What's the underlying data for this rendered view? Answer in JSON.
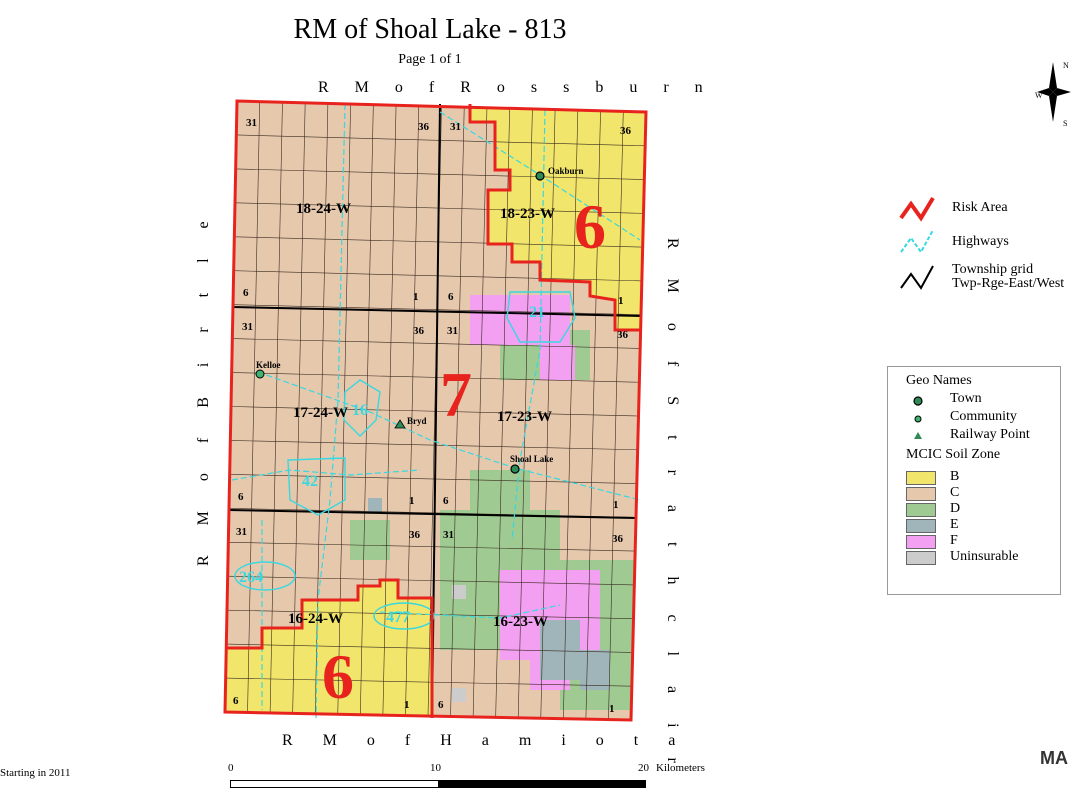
{
  "title": "RM of Shoal Lake - 813",
  "page_label": "Page 1 of 1",
  "borders": {
    "north": "R M   o f   R o s s b u r n",
    "south": "R M   o f   H a m i o t a",
    "west": "R M   o f   B i r t l e",
    "east": "R M   o f   S t r a t h c l a i r"
  },
  "townships": [
    "18-24-W",
    "18-23-W",
    "17-24-W",
    "17-23-W",
    "16-24-W",
    "16-23-W"
  ],
  "risk_areas": [
    "6",
    "7",
    "6"
  ],
  "section_numbers": [
    "31",
    "36",
    "31",
    "36",
    "6",
    "1",
    "6",
    "1",
    "31",
    "36",
    "31",
    "36",
    "6",
    "1",
    "6",
    "1",
    "31",
    "36",
    "31",
    "36",
    "6",
    "1",
    "6",
    "1"
  ],
  "highways": [
    "21",
    "16",
    "42",
    "264",
    "477"
  ],
  "places": {
    "oakburn": "Oakburn",
    "kelloe": "Kelloe",
    "bryd": "Bryd",
    "shoal_lake": "Shoal Lake"
  },
  "legend_lines": {
    "risk": "Risk Area",
    "highways": "Highways",
    "township_grid": "Township grid",
    "township_sub": "Twp-Rge-East/West"
  },
  "legend_geo": {
    "heading": "Geo Names",
    "town": "Town",
    "community": "Community",
    "railway": "Railway Point",
    "soil_heading": "MCIC Soil Zone",
    "zones": [
      {
        "label": "B",
        "color": "#f1e66b"
      },
      {
        "label": "C",
        "color": "#e6c8ad"
      },
      {
        "label": "D",
        "color": "#9fcb92"
      },
      {
        "label": "E",
        "color": "#9fb5b9"
      },
      {
        "label": "F",
        "color": "#f4a0f2"
      },
      {
        "label": "Uninsurable",
        "color": "#cccccc"
      }
    ]
  },
  "compass": {
    "n": "N",
    "w": "W",
    "s": "S"
  },
  "scale": {
    "zero": "0",
    "mid": "10",
    "end": "20",
    "unit": "Kilometers"
  },
  "footer_left": "Starting in 2011",
  "logo": "MA",
  "colors": {
    "risk": "#e8231e",
    "highway": "#38d8e0",
    "zone_b": "#f1e66b",
    "zone_c": "#e6c8ad",
    "zone_d": "#9fcb92",
    "zone_e": "#9fb5b9",
    "zone_f": "#f4a0f2",
    "uninsurable": "#cccccc"
  }
}
